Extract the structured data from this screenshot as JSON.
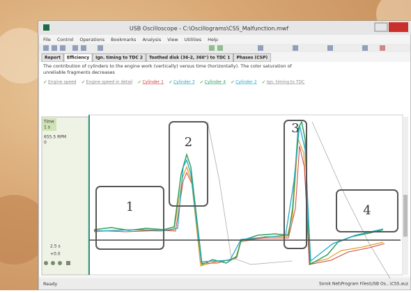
{
  "window": {
    "title": "USB Oscilloscope - C:\\Oscillograms\\CSS_Malfunction.mwf",
    "menu": [
      "File",
      "Control",
      "Operations",
      "Bookmarks",
      "Analysis",
      "View",
      "Utilities",
      "Help"
    ],
    "tabs": [
      "Report",
      "Efficiency",
      "Ign. timing to TDC 2",
      "Toothed disk (36-2, 360°) to TDC 1",
      "Phases (CSP)"
    ],
    "description": "The contribution of cylinders to the engine work (vertically) versus time (horizontally). The color saturation of unreliable fragments decreases",
    "legend": [
      "Engine speed",
      "Engine speed in detail",
      "Cylinder 1",
      "Cylinder 3",
      "Cylinder 4",
      "Cylinder 2",
      "Ign. timing to TDC"
    ],
    "left_panel": {
      "time_label": "Time",
      "time_value": "1 s",
      "rpm": "655.5 RPM",
      "rpm_sub": "0",
      "bottom1": "2.5 s",
      "bottom2": "+0.0"
    },
    "boxes": [
      "1",
      "2",
      "3",
      "4"
    ],
    "status": {
      "left": "Ready",
      "right": "Sorok Net\\Program Files\\USB Os...\\CSS.auz"
    }
  }
}
